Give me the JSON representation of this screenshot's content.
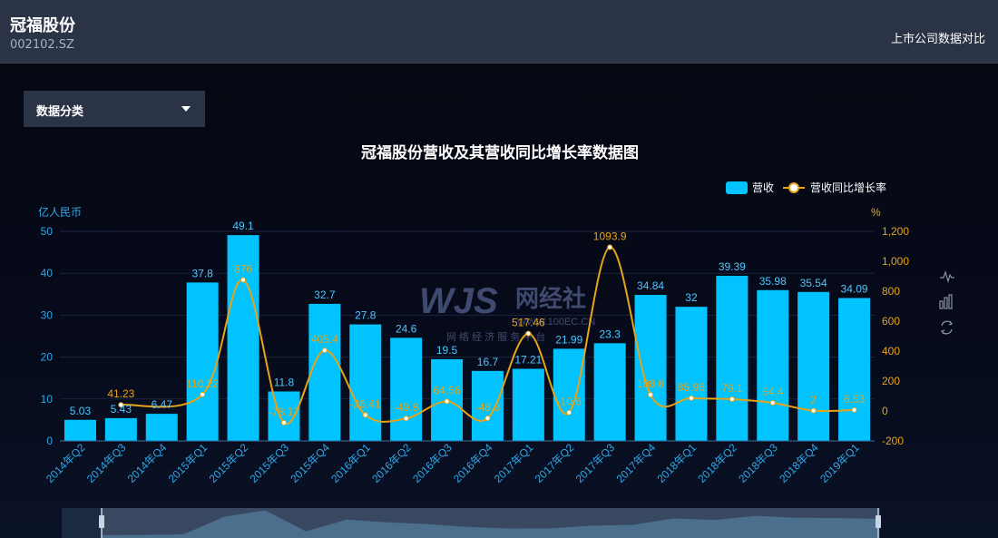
{
  "header": {
    "company": "冠福股份",
    "code": "002102.SZ",
    "compare_link": "上市公司数据对比"
  },
  "filter": {
    "label": "数据分类"
  },
  "watermark": {
    "logo": "WJS",
    "brand": "网经社",
    "site": "WWW.100EC.CN",
    "tagline": "网 络 经 济 服 务 平 台"
  },
  "toolbox": [
    "line-chart-icon",
    "bar-chart-icon",
    "restore-icon"
  ],
  "colors": {
    "bar": "#00c3ff",
    "line": "#e8a317",
    "bar_label": "#4cc8ff",
    "line_label": "#e8a317",
    "left_axis": "#2fa8e8",
    "right_axis": "#e8a317"
  },
  "chart_data": {
    "type": "bar",
    "title": "冠福股份营收及其营收同比增长率数据图",
    "left_unit": "亿人民币",
    "right_unit": "%",
    "legend_position": "top-right",
    "grid": true,
    "categories": [
      "2014年Q2",
      "2014年Q3",
      "2014年Q4",
      "2015年Q1",
      "2015年Q2",
      "2015年Q3",
      "2015年Q4",
      "2016年Q1",
      "2016年Q2",
      "2016年Q3",
      "2016年Q4",
      "2017年Q1",
      "2017年Q2",
      "2017年Q3",
      "2017年Q4",
      "2018年Q1",
      "2018年Q2",
      "2018年Q3",
      "2018年Q4",
      "2019年Q1"
    ],
    "y_left": {
      "min": 0,
      "max": 50,
      "ticks": [
        "0",
        "10",
        "20",
        "30",
        "40",
        "50"
      ]
    },
    "y_right": {
      "min": -200,
      "max": 1200,
      "ticks": [
        "-200",
        "0",
        "200",
        "400",
        "600",
        "800",
        "1,000",
        "1,200"
      ]
    },
    "series": [
      {
        "name": "营收",
        "type": "bar",
        "axis": "left",
        "values": [
          5.03,
          5.43,
          6.47,
          37.8,
          49.1,
          11.8,
          32.7,
          27.8,
          24.6,
          19.5,
          16.7,
          17.21,
          21.99,
          23.3,
          34.84,
          32,
          39.39,
          35.98,
          35.54,
          34.09
        ],
        "labels": [
          "5.03",
          "5.43",
          "6.47",
          "37.8",
          "49.1",
          "11.8",
          "32.7",
          "27.8",
          "24.6",
          "19.5",
          "16.7",
          "17.21",
          "21.99",
          "23.3",
          "34.84",
          "32",
          "39.39",
          "35.98",
          "35.54",
          "34.09"
        ]
      },
      {
        "name": "营收同比增长率",
        "type": "line",
        "axis": "right",
        "values": [
          null,
          41.23,
          null,
          110.22,
          876,
          -78.17,
          405.4,
          -26.41,
          -49.8,
          64.56,
          -48.8,
          517.46,
          -10.6,
          1093.9,
          108.6,
          85.96,
          79.1,
          54.4,
          2,
          6.53
        ],
        "labels": [
          "",
          "41.23",
          "",
          "110.22",
          "876",
          "-78.17",
          "405.4",
          "-26.41",
          "-49.8",
          "64.56",
          "-48.8",
          "517.46",
          "-10.6",
          "1093.9",
          "108.6",
          "85.96",
          "79.1",
          "54.4",
          "2",
          "6.53"
        ]
      }
    ]
  }
}
